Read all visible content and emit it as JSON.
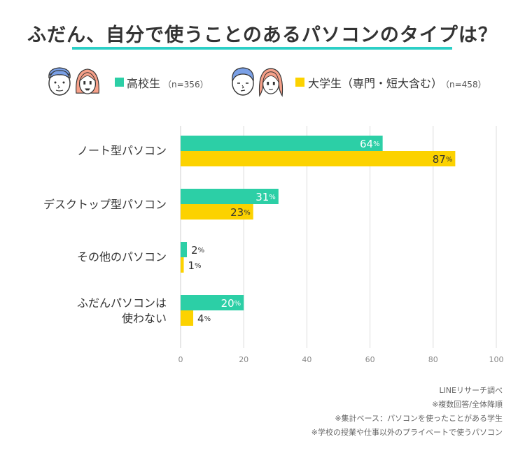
{
  "title": "ふだん、自分で使うことのあるパソコンのタイプは？",
  "colors": {
    "accent": "#2ccfc6",
    "high_school": "#2ccfa6",
    "university": "#fcd200",
    "grid": "#dddddd"
  },
  "legend": [
    {
      "label": "高校生",
      "n": "（n=356）",
      "icons": [
        "boy-face-icon",
        "girl-face-icon"
      ]
    },
    {
      "label": "大学生（専門・短大含む）",
      "n": "（n=458）",
      "icons": [
        "boy-face-icon",
        "girl-face-icon"
      ]
    }
  ],
  "chart_data": {
    "type": "bar",
    "orientation": "horizontal",
    "categories": [
      "ノート型パソコン",
      "デスクトップ型パソコン",
      "その他のパソコン",
      "ふだんパソコンは\n使わない"
    ],
    "series": [
      {
        "name": "高校生",
        "values": [
          64,
          31,
          2,
          20
        ],
        "color": "#2ccfa6"
      },
      {
        "name": "大学生（専門・短大含む）",
        "values": [
          87,
          23,
          1,
          4
        ],
        "color": "#fcd200"
      }
    ],
    "value_suffix": "%",
    "xlim": [
      0,
      100
    ],
    "xticks": [
      0,
      20,
      40,
      60,
      80,
      100
    ],
    "grid": true,
    "legend_position": "top"
  },
  "footnotes": [
    "LINEリサーチ調べ",
    "※複数回答/全体降順",
    "※集計ベース：パソコンを使ったことがある学生",
    "※学校の授業や仕事以外のプライベートで使うパソコン"
  ]
}
